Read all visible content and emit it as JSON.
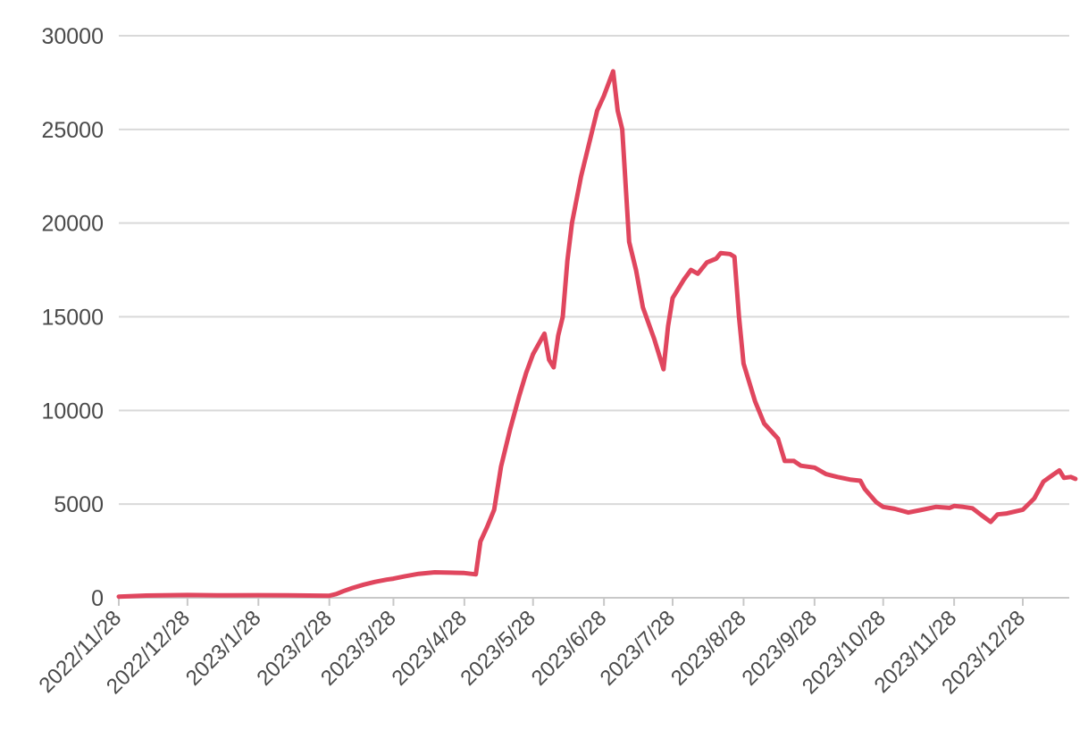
{
  "chart_data": {
    "type": "line",
    "title": "",
    "xlabel": "",
    "ylabel": "",
    "ylim": [
      0,
      30000
    ],
    "y_ticks": [
      "0",
      "5000",
      "10000",
      "15000",
      "20000",
      "25000",
      "30000"
    ],
    "x_ticks": [
      "2022/11/28",
      "2022/12/28",
      "2023/1/28",
      "2023/2/28",
      "2023/3/28",
      "2023/4/28",
      "2023/5/28",
      "2023/6/28",
      "2023/7/28",
      "2023/8/28",
      "2023/9/28",
      "2023/10/28",
      "2023/11/28",
      "2023/12/28"
    ],
    "grid": true,
    "legend": "none",
    "colors": {
      "line": "#e0465e",
      "grid": "#d9d9d9",
      "axis": "#c8c8c8",
      "text": "#4a4a4a"
    },
    "series": [
      {
        "points": [
          [
            "2022/11/28",
            60
          ],
          [
            "2022/12/10",
            120
          ],
          [
            "2022/12/28",
            150
          ],
          [
            "2023/1/10",
            130
          ],
          [
            "2023/1/28",
            140
          ],
          [
            "2023/2/10",
            130
          ],
          [
            "2023/2/28",
            110
          ],
          [
            "2023/3/3",
            200
          ],
          [
            "2023/3/6",
            350
          ],
          [
            "2023/3/10",
            520
          ],
          [
            "2023/3/15",
            700
          ],
          [
            "2023/3/20",
            850
          ],
          [
            "2023/3/25",
            970
          ],
          [
            "2023/3/28",
            1020
          ],
          [
            "2023/4/2",
            1150
          ],
          [
            "2023/4/8",
            1280
          ],
          [
            "2023/4/15",
            1360
          ],
          [
            "2023/4/22",
            1340
          ],
          [
            "2023/4/28",
            1320
          ],
          [
            "2023/5/3",
            1250
          ],
          [
            "2023/5/5",
            3000
          ],
          [
            "2023/5/8",
            3800
          ],
          [
            "2023/5/11",
            4700
          ],
          [
            "2023/5/14",
            7000
          ],
          [
            "2023/5/18",
            9000
          ],
          [
            "2023/5/22",
            10800
          ],
          [
            "2023/5/25",
            12000
          ],
          [
            "2023/5/28",
            13000
          ],
          [
            "2023/6/2",
            14100
          ],
          [
            "2023/6/4",
            12700
          ],
          [
            "2023/6/6",
            12300
          ],
          [
            "2023/6/8",
            14000
          ],
          [
            "2023/6/10",
            15000
          ],
          [
            "2023/6/12",
            18000
          ],
          [
            "2023/6/14",
            20000
          ],
          [
            "2023/6/18",
            22500
          ],
          [
            "2023/6/22",
            24500
          ],
          [
            "2023/6/25",
            26000
          ],
          [
            "2023/6/28",
            26800
          ],
          [
            "2023/7/2",
            28100
          ],
          [
            "2023/7/4",
            26000
          ],
          [
            "2023/7/6",
            25000
          ],
          [
            "2023/7/9",
            19000
          ],
          [
            "2023/7/12",
            17500
          ],
          [
            "2023/7/15",
            15500
          ],
          [
            "2023/7/20",
            13800
          ],
          [
            "2023/7/24",
            12200
          ],
          [
            "2023/7/26",
            14500
          ],
          [
            "2023/7/28",
            16000
          ],
          [
            "2023/8/2",
            17000
          ],
          [
            "2023/8/5",
            17500
          ],
          [
            "2023/8/8",
            17300
          ],
          [
            "2023/8/12",
            17900
          ],
          [
            "2023/8/16",
            18100
          ],
          [
            "2023/8/18",
            18400
          ],
          [
            "2023/8/22",
            18350
          ],
          [
            "2023/8/24",
            18200
          ],
          [
            "2023/8/26",
            15000
          ],
          [
            "2023/8/28",
            12500
          ],
          [
            "2023/9/2",
            10500
          ],
          [
            "2023/9/6",
            9300
          ],
          [
            "2023/9/12",
            8500
          ],
          [
            "2023/9/15",
            7300
          ],
          [
            "2023/9/19",
            7300
          ],
          [
            "2023/9/22",
            7050
          ],
          [
            "2023/9/28",
            6950
          ],
          [
            "2023/10/3",
            6600
          ],
          [
            "2023/10/8",
            6450
          ],
          [
            "2023/10/14",
            6300
          ],
          [
            "2023/10/18",
            6250
          ],
          [
            "2023/10/20",
            5800
          ],
          [
            "2023/10/25",
            5100
          ],
          [
            "2023/10/28",
            4850
          ],
          [
            "2023/11/2",
            4750
          ],
          [
            "2023/11/8",
            4550
          ],
          [
            "2023/11/14",
            4700
          ],
          [
            "2023/11/20",
            4850
          ],
          [
            "2023/11/26",
            4800
          ],
          [
            "2023/11/28",
            4900
          ],
          [
            "2023/12/2",
            4850
          ],
          [
            "2023/12/6",
            4780
          ],
          [
            "2023/12/10",
            4400
          ],
          [
            "2023/12/14",
            4050
          ],
          [
            "2023/12/17",
            4450
          ],
          [
            "2023/12/21",
            4500
          ],
          [
            "2023/12/28",
            4700
          ],
          [
            "2024/1/2",
            5300
          ],
          [
            "2024/1/6",
            6200
          ],
          [
            "2024/1/10",
            6550
          ],
          [
            "2024/1/13",
            6800
          ],
          [
            "2024/1/15",
            6400
          ],
          [
            "2024/1/18",
            6450
          ],
          [
            "2024/1/20",
            6350
          ]
        ]
      }
    ]
  }
}
